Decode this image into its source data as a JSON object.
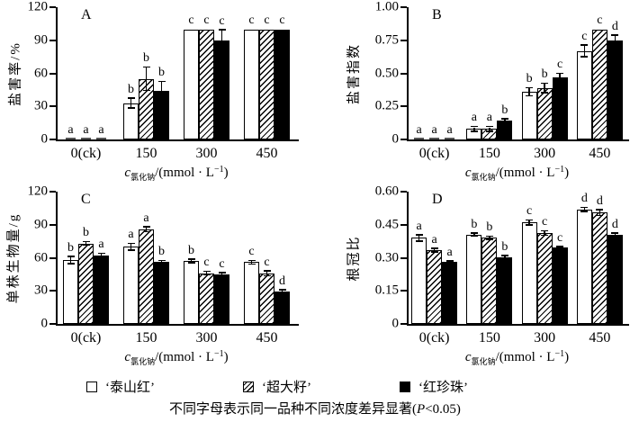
{
  "figure": {
    "x_axis_label": {
      "variable": "c",
      "subscript": "氯化钠",
      "unit_prefix": "/(mmol · L",
      "exponent": "−1",
      "unit_suffix": ")"
    },
    "legend": {
      "items": [
        {
          "label": "‘泰山红’",
          "pattern": "white"
        },
        {
          "label": "‘超大籽’",
          "pattern": "hatch"
        },
        {
          "label": "‘红珍珠’",
          "pattern": "black"
        }
      ]
    },
    "caption": {
      "prefix": "不同字母表示同一品种不同浓度差异显著(",
      "italic": "P",
      "suffix": "<0.05)"
    },
    "colors": {
      "ink": "#000000",
      "paper": "#ffffff"
    }
  },
  "chart_data": [
    {
      "panel": "A",
      "type": "bar",
      "ylabel": "盐害率/%",
      "xlabel": "c氯化钠/(mmol·L−1)",
      "ylim": [
        0,
        120
      ],
      "yticks": [
        0,
        30,
        60,
        90,
        120
      ],
      "ytick_labels": [
        "0",
        "30",
        "60",
        "90",
        "120"
      ],
      "categories": [
        "0(ck)",
        "150",
        "300",
        "450"
      ],
      "series": [
        {
          "name": "‘泰山红’",
          "pattern": "white",
          "values": [
            0,
            33,
            100,
            100
          ],
          "errors": [
            0,
            4,
            0,
            0
          ],
          "letters": [
            "a",
            "b",
            "c",
            "c"
          ]
        },
        {
          "name": "‘超大籽’",
          "pattern": "hatch",
          "values": [
            0,
            55,
            100,
            100
          ],
          "errors": [
            0,
            10,
            0,
            0
          ],
          "letters": [
            "a",
            "b",
            "c",
            "c"
          ]
        },
        {
          "name": "‘红珍珠’",
          "pattern": "black",
          "values": [
            0,
            44,
            90,
            100
          ],
          "errors": [
            0,
            8,
            9,
            0
          ],
          "letters": [
            "a",
            "b",
            "c",
            "c"
          ]
        }
      ]
    },
    {
      "panel": "B",
      "type": "bar",
      "ylabel": "盐害指数",
      "xlabel": "c氯化钠/(mmol·L−1)",
      "ylim": [
        0,
        1.0
      ],
      "yticks": [
        0,
        0.25,
        0.5,
        0.75,
        1.0
      ],
      "ytick_labels": [
        "0",
        "0.25",
        "0.50",
        "0.75",
        "1.00"
      ],
      "categories": [
        "0(ck)",
        "150",
        "300",
        "450"
      ],
      "series": [
        {
          "name": "‘泰山红’",
          "pattern": "white",
          "values": [
            0,
            0.08,
            0.36,
            0.67
          ],
          "errors": [
            0,
            0.012,
            0.025,
            0.04
          ],
          "letters": [
            "a",
            "a",
            "b",
            "c"
          ]
        },
        {
          "name": "‘超大籽’",
          "pattern": "hatch",
          "values": [
            0,
            0.08,
            0.39,
            0.83
          ],
          "errors": [
            0,
            0.012,
            0.03,
            0
          ],
          "letters": [
            "a",
            "a",
            "b",
            "c"
          ]
        },
        {
          "name": "‘红珍珠’",
          "pattern": "black",
          "values": [
            0,
            0.14,
            0.47,
            0.75
          ],
          "errors": [
            0,
            0.01,
            0.025,
            0.035
          ],
          "letters": [
            "a",
            "b",
            "c",
            "d"
          ]
        }
      ]
    },
    {
      "panel": "C",
      "type": "bar",
      "ylabel": "单株生物量/g",
      "xlabel": "c氯化钠/(mmol·L−1)",
      "ylim": [
        0,
        120
      ],
      "yticks": [
        0,
        30,
        60,
        90,
        120
      ],
      "ytick_labels": [
        "0",
        "30",
        "60",
        "90",
        "120"
      ],
      "categories": [
        "0(ck)",
        "150",
        "300",
        "450"
      ],
      "series": [
        {
          "name": "‘泰山红’",
          "pattern": "white",
          "values": [
            58,
            70,
            57,
            56
          ],
          "errors": [
            2.5,
            2.5,
            1,
            1
          ],
          "letters": [
            "b",
            "a",
            "b",
            "c"
          ]
        },
        {
          "name": "‘超大籽’",
          "pattern": "hatch",
          "values": [
            73,
            86,
            46,
            46
          ],
          "errors": [
            1,
            1.5,
            1,
            1.5
          ],
          "letters": [
            "b",
            "a",
            "c",
            "c"
          ]
        },
        {
          "name": "‘红珍珠’",
          "pattern": "black",
          "values": [
            62,
            56,
            45,
            29
          ],
          "errors": [
            1.5,
            1,
            1,
            1.5
          ],
          "letters": [
            "a",
            "b",
            "c",
            "d"
          ]
        }
      ]
    },
    {
      "panel": "D",
      "type": "bar",
      "ylabel": "根冠比",
      "xlabel": "c氯化钠/(mmol·L−1)",
      "ylim": [
        0,
        0.6
      ],
      "yticks": [
        0,
        0.15,
        0.3,
        0.45,
        0.6
      ],
      "ytick_labels": [
        "0",
        "0.15",
        "0.30",
        "0.45",
        "0.60"
      ],
      "categories": [
        "0(ck)",
        "150",
        "300",
        "450"
      ],
      "series": [
        {
          "name": "‘泰山红’",
          "pattern": "white",
          "values": [
            0.39,
            0.405,
            0.46,
            0.52
          ],
          "errors": [
            0.012,
            0.004,
            0.008,
            0.006
          ],
          "letters": [
            "a",
            "b",
            "c",
            "d"
          ]
        },
        {
          "name": "‘超大籽’",
          "pattern": "hatch",
          "values": [
            0.335,
            0.39,
            0.412,
            0.505
          ],
          "errors": [
            0.005,
            0.004,
            0.007,
            0.01
          ],
          "letters": [
            "a",
            "b",
            "c",
            "d"
          ]
        },
        {
          "name": "‘红珍珠’",
          "pattern": "black",
          "values": [
            0.28,
            0.303,
            0.345,
            0.405
          ],
          "errors": [
            0.003,
            0.004,
            0.003,
            0.004
          ],
          "letters": [
            "a",
            "b",
            "c",
            "d"
          ]
        }
      ]
    }
  ]
}
